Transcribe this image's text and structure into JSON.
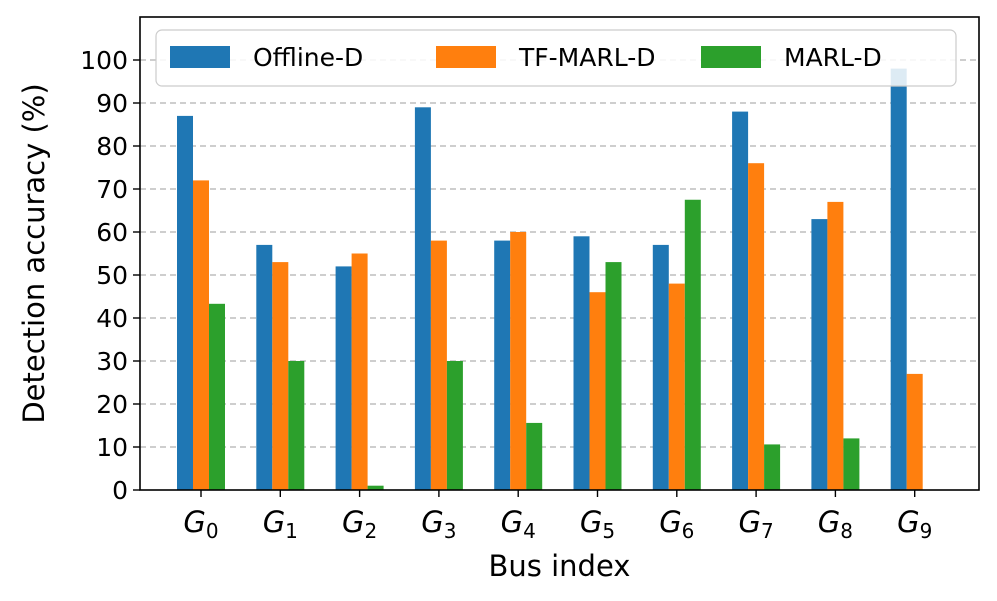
{
  "chart_data": {
    "type": "bar",
    "title": "",
    "xlabel": "Bus index",
    "ylabel": "Detection accuracy (%)",
    "ylim": [
      0,
      110
    ],
    "yticks": [
      0,
      10,
      20,
      30,
      40,
      50,
      60,
      70,
      80,
      90,
      100
    ],
    "grid": "horizontal dashed",
    "legend_position": "top",
    "categories": [
      {
        "base": "G",
        "sub": "0"
      },
      {
        "base": "G",
        "sub": "1"
      },
      {
        "base": "G",
        "sub": "2"
      },
      {
        "base": "G",
        "sub": "3"
      },
      {
        "base": "G",
        "sub": "4"
      },
      {
        "base": "G",
        "sub": "5"
      },
      {
        "base": "G",
        "sub": "6"
      },
      {
        "base": "G",
        "sub": "7"
      },
      {
        "base": "G",
        "sub": "8"
      },
      {
        "base": "G",
        "sub": "9"
      }
    ],
    "series": [
      {
        "name": "Offline-D",
        "color": "#1f77b4",
        "values": [
          87,
          57,
          52,
          89,
          58,
          59,
          57,
          88,
          63,
          98
        ]
      },
      {
        "name": "TF-MARL-D",
        "color": "#ff7f0e",
        "values": [
          72,
          53,
          55,
          58,
          60,
          46,
          48,
          76,
          67,
          27
        ]
      },
      {
        "name": "MARL-D",
        "color": "#2ca02c",
        "values": [
          43.3,
          30,
          1,
          30,
          15.6,
          53,
          67.5,
          10.6,
          12,
          0
        ]
      }
    ]
  }
}
